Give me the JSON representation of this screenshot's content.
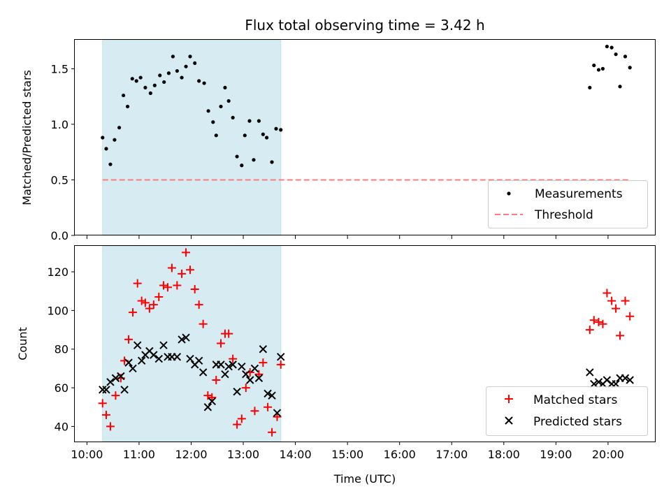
{
  "chart_data": [
    {
      "type": "scatter",
      "title": "Flux total observing time = 3.42 h",
      "xlabel": "",
      "ylabel": "Matched/Predicted stars",
      "xlim": [
        9.7667,
        20.9
      ],
      "ylim": [
        0,
        1.76
      ],
      "x_ticks": [
        10,
        11,
        12,
        13,
        14,
        15,
        16,
        17,
        18,
        19,
        20
      ],
      "y_ticks": [
        0.0,
        0.5,
        1.0,
        1.5
      ],
      "y_tick_labels": [
        "0.0",
        "0.5",
        "1.0",
        "1.5"
      ],
      "shaded_interval": {
        "x": [
          10.3,
          13.72
        ],
        "color": "#add8e6"
      },
      "legend": {
        "position": "lower-right",
        "entries": [
          "Measurements",
          "Threshold"
        ]
      },
      "series": [
        {
          "name": "Measurements",
          "marker": "dot",
          "color": "#000000",
          "points": [
            [
              10.3,
              0.88
            ],
            [
              10.37,
              0.78
            ],
            [
              10.45,
              0.64
            ],
            [
              10.53,
              0.86
            ],
            [
              10.62,
              0.97
            ],
            [
              10.7,
              1.26
            ],
            [
              10.78,
              1.16
            ],
            [
              10.87,
              1.41
            ],
            [
              10.95,
              1.39
            ],
            [
              11.03,
              1.42
            ],
            [
              11.12,
              1.33
            ],
            [
              11.22,
              1.28
            ],
            [
              11.3,
              1.35
            ],
            [
              11.4,
              1.44
            ],
            [
              11.48,
              1.38
            ],
            [
              11.57,
              1.46
            ],
            [
              11.65,
              1.61
            ],
            [
              11.73,
              1.48
            ],
            [
              11.82,
              1.42
            ],
            [
              11.9,
              1.52
            ],
            [
              11.98,
              1.61
            ],
            [
              12.07,
              1.55
            ],
            [
              12.15,
              1.39
            ],
            [
              12.25,
              1.37
            ],
            [
              12.33,
              1.12
            ],
            [
              12.42,
              1.02
            ],
            [
              12.48,
              0.9
            ],
            [
              12.57,
              1.16
            ],
            [
              12.65,
              1.33
            ],
            [
              12.72,
              1.21
            ],
            [
              12.8,
              1.06
            ],
            [
              12.88,
              0.71
            ],
            [
              12.97,
              0.63
            ],
            [
              13.03,
              0.9
            ],
            [
              13.12,
              1.03
            ],
            [
              13.2,
              0.68
            ],
            [
              13.3,
              1.03
            ],
            [
              13.38,
              0.91
            ],
            [
              13.45,
              0.88
            ],
            [
              13.55,
              0.66
            ],
            [
              13.63,
              0.96
            ],
            [
              13.72,
              0.95
            ],
            [
              19.65,
              1.33
            ],
            [
              19.73,
              1.53
            ],
            [
              19.82,
              1.49
            ],
            [
              19.9,
              1.5
            ],
            [
              19.98,
              1.7
            ],
            [
              20.07,
              1.69
            ],
            [
              20.15,
              1.63
            ],
            [
              20.23,
              1.34
            ],
            [
              20.33,
              1.61
            ],
            [
              20.42,
              1.51
            ]
          ]
        },
        {
          "name": "Threshold",
          "marker": "dashed-line",
          "color": "#ff7b7b",
          "points": [
            [
              10.3,
              0.5
            ],
            [
              20.42,
              0.5
            ]
          ]
        }
      ]
    },
    {
      "type": "scatter",
      "title": "",
      "xlabel": "Time (UTC)",
      "ylabel": "Count",
      "xlim": [
        9.7667,
        20.9
      ],
      "ylim": [
        32.2,
        133.4
      ],
      "x_ticks": [
        10,
        11,
        12,
        13,
        14,
        15,
        16,
        17,
        18,
        19,
        20
      ],
      "x_tick_labels": [
        "10:00",
        "11:00",
        "12:00",
        "13:00",
        "14:00",
        "15:00",
        "16:00",
        "17:00",
        "18:00",
        "19:00",
        "20:00"
      ],
      "y_ticks": [
        40,
        60,
        80,
        100,
        120
      ],
      "y_tick_labels": [
        "40",
        "60",
        "80",
        "100",
        "120"
      ],
      "shaded_interval": {
        "x": [
          10.3,
          13.72
        ],
        "color": "#add8e6"
      },
      "legend": {
        "position": "lower-right",
        "entries": [
          "Matched stars",
          "Predicted stars"
        ]
      },
      "series": [
        {
          "name": "Matched stars",
          "marker": "plus",
          "color": "#ff0000",
          "points": [
            [
              10.3,
              52
            ],
            [
              10.37,
              46
            ],
            [
              10.45,
              40
            ],
            [
              10.55,
              56
            ],
            [
              10.65,
              65
            ],
            [
              10.72,
              74
            ],
            [
              10.8,
              85
            ],
            [
              10.88,
              99
            ],
            [
              10.97,
              114
            ],
            [
              11.05,
              105
            ],
            [
              11.12,
              104
            ],
            [
              11.2,
              101
            ],
            [
              11.28,
              103
            ],
            [
              11.38,
              107
            ],
            [
              11.47,
              113
            ],
            [
              11.55,
              112
            ],
            [
              11.63,
              122
            ],
            [
              11.73,
              113
            ],
            [
              11.82,
              119
            ],
            [
              11.9,
              130
            ],
            [
              11.98,
              121
            ],
            [
              12.07,
              111
            ],
            [
              12.15,
              103
            ],
            [
              12.23,
              93
            ],
            [
              12.32,
              56
            ],
            [
              12.4,
              55
            ],
            [
              12.48,
              64
            ],
            [
              12.57,
              83
            ],
            [
              12.65,
              88
            ],
            [
              12.72,
              88
            ],
            [
              12.8,
              75
            ],
            [
              12.88,
              41
            ],
            [
              12.97,
              44
            ],
            [
              13.05,
              60
            ],
            [
              13.13,
              68
            ],
            [
              13.22,
              48
            ],
            [
              13.3,
              67
            ],
            [
              13.38,
              73
            ],
            [
              13.47,
              50
            ],
            [
              13.55,
              37
            ],
            [
              13.65,
              45
            ],
            [
              13.72,
              72
            ],
            [
              19.65,
              90
            ],
            [
              19.73,
              95
            ],
            [
              19.82,
              94
            ],
            [
              19.9,
              93
            ],
            [
              19.98,
              109
            ],
            [
              20.07,
              105
            ],
            [
              20.15,
              101
            ],
            [
              20.23,
              87
            ],
            [
              20.33,
              105
            ],
            [
              20.42,
              97
            ]
          ]
        },
        {
          "name": "Predicted stars",
          "marker": "x",
          "color": "#000000",
          "points": [
            [
              10.3,
              59
            ],
            [
              10.37,
              59
            ],
            [
              10.45,
              63
            ],
            [
              10.55,
              65
            ],
            [
              10.65,
              66
            ],
            [
              10.72,
              59
            ],
            [
              10.8,
              73
            ],
            [
              10.88,
              70
            ],
            [
              10.97,
              82
            ],
            [
              11.05,
              74
            ],
            [
              11.12,
              77
            ],
            [
              11.2,
              79
            ],
            [
              11.28,
              77
            ],
            [
              11.38,
              75
            ],
            [
              11.47,
              82
            ],
            [
              11.55,
              76
            ],
            [
              11.63,
              76
            ],
            [
              11.73,
              76
            ],
            [
              11.82,
              85
            ],
            [
              11.9,
              86
            ],
            [
              11.98,
              75
            ],
            [
              12.07,
              72
            ],
            [
              12.15,
              74
            ],
            [
              12.23,
              68
            ],
            [
              12.32,
              50
            ],
            [
              12.4,
              53
            ],
            [
              12.48,
              72
            ],
            [
              12.57,
              72
            ],
            [
              12.65,
              67
            ],
            [
              12.72,
              71
            ],
            [
              12.8,
              72
            ],
            [
              12.88,
              58
            ],
            [
              12.97,
              71
            ],
            [
              13.05,
              67
            ],
            [
              13.13,
              64
            ],
            [
              13.22,
              70
            ],
            [
              13.3,
              65
            ],
            [
              13.38,
              80
            ],
            [
              13.47,
              57
            ],
            [
              13.55,
              56
            ],
            [
              13.65,
              47
            ],
            [
              13.72,
              76
            ],
            [
              19.65,
              68
            ],
            [
              19.73,
              62
            ],
            [
              19.82,
              63
            ],
            [
              19.9,
              62
            ],
            [
              19.98,
              64
            ],
            [
              20.07,
              62
            ],
            [
              20.15,
              62
            ],
            [
              20.23,
              65
            ],
            [
              20.33,
              65
            ],
            [
              20.42,
              64
            ]
          ]
        }
      ]
    }
  ]
}
